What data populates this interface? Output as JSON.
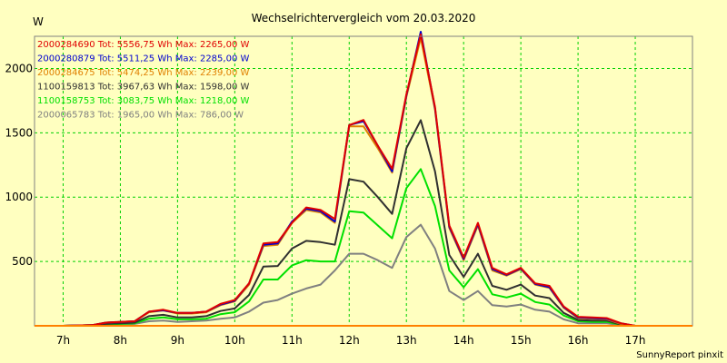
{
  "chart_data": {
    "type": "line",
    "title": "Wechselrichtervergleich vom 20.03.2020",
    "ylabel": "W",
    "xlabel": "",
    "footer": "SunnyReport pinxit",
    "grid": true,
    "xlim": [
      6.5,
      18
    ],
    "ylim": [
      0,
      2250
    ],
    "x_ticks": [
      7,
      8,
      9,
      10,
      11,
      12,
      13,
      14,
      15,
      16,
      17
    ],
    "x_tick_labels": [
      "7h",
      "8h",
      "9h",
      "10h",
      "11h",
      "12h",
      "13h",
      "14h",
      "15h",
      "16h",
      "17h"
    ],
    "y_ticks": [
      500,
      1000,
      1500,
      2000
    ],
    "y_tick_labels": [
      "500",
      "1000",
      "1500",
      "2000"
    ],
    "x": [
      6.5,
      7.0,
      7.5,
      7.75,
      8.0,
      8.25,
      8.5,
      8.75,
      9.0,
      9.25,
      9.5,
      9.75,
      10.0,
      10.25,
      10.5,
      10.75,
      11.0,
      11.25,
      11.5,
      11.75,
      12.0,
      12.25,
      12.5,
      12.75,
      13.0,
      13.25,
      13.5,
      13.75,
      14.0,
      14.25,
      14.5,
      14.75,
      15.0,
      15.25,
      15.5,
      15.75,
      16.0,
      16.25,
      16.5,
      16.75,
      17.0,
      17.25,
      17.5,
      18.0
    ],
    "series": [
      {
        "name": "2000284690",
        "legend": "2000284690 Tot: 5556,75 Wh Max: 2265,00 W",
        "color": "#e00000",
        "values": [
          0,
          0,
          5,
          25,
          30,
          35,
          110,
          125,
          100,
          100,
          110,
          170,
          200,
          330,
          640,
          650,
          800,
          920,
          900,
          830,
          1560,
          1600,
          1400,
          1220,
          1800,
          2265,
          1700,
          780,
          530,
          800,
          450,
          400,
          450,
          330,
          310,
          150,
          70,
          65,
          60,
          20,
          0,
          0,
          0,
          0
        ]
      },
      {
        "name": "2000280879",
        "legend": "2000280879 Tot: 5511,25 Wh Max: 2285,00 W",
        "color": "#0000d0",
        "values": [
          0,
          0,
          5,
          25,
          30,
          35,
          110,
          120,
          100,
          100,
          110,
          165,
          195,
          330,
          630,
          640,
          810,
          910,
          890,
          810,
          1560,
          1590,
          1400,
          1200,
          1790,
          2285,
          1690,
          770,
          520,
          790,
          440,
          395,
          445,
          325,
          300,
          145,
          65,
          60,
          55,
          20,
          0,
          0,
          0,
          0
        ]
      },
      {
        "name": "2000284675",
        "legend": "2000284675 Tot: 5474,25 Wh Max: 2239,00 W",
        "color": "#e08000",
        "values": [
          0,
          0,
          5,
          25,
          30,
          35,
          105,
          120,
          95,
          95,
          105,
          160,
          190,
          320,
          620,
          630,
          800,
          900,
          880,
          800,
          1550,
          1550,
          1380,
          1190,
          1780,
          2239,
          1680,
          760,
          510,
          780,
          430,
          390,
          440,
          320,
          295,
          140,
          60,
          55,
          50,
          15,
          0,
          0,
          0,
          0
        ]
      },
      {
        "name": "1100159813",
        "legend": "1100159813 Tot: 3967,63 Wh Max: 1598,00 W",
        "color": "#303030",
        "values": [
          0,
          0,
          5,
          15,
          20,
          25,
          75,
          85,
          65,
          65,
          75,
          115,
          135,
          240,
          460,
          465,
          600,
          660,
          650,
          630,
          1140,
          1120,
          1000,
          870,
          1380,
          1598,
          1200,
          550,
          380,
          560,
          310,
          280,
          320,
          235,
          215,
          100,
          45,
          40,
          40,
          10,
          0,
          0,
          0,
          0
        ]
      },
      {
        "name": "1100158753",
        "legend": "1100158753 Tot: 3083,75 Wh Max: 1218,00 W",
        "color": "#00e000",
        "values": [
          0,
          0,
          5,
          10,
          15,
          20,
          55,
          65,
          50,
          50,
          55,
          90,
          105,
          190,
          360,
          360,
          470,
          510,
          500,
          500,
          890,
          880,
          780,
          680,
          1070,
          1218,
          930,
          430,
          300,
          440,
          245,
          220,
          250,
          185,
          165,
          80,
          35,
          30,
          30,
          8,
          0,
          0,
          0,
          0
        ]
      },
      {
        "name": "2000065783",
        "legend": "2000065783 Tot: 1965,00 Wh Max: 786,00 W",
        "color": "#808080",
        "values": [
          0,
          0,
          3,
          8,
          10,
          15,
          35,
          40,
          30,
          35,
          40,
          55,
          65,
          110,
          180,
          200,
          250,
          290,
          320,
          430,
          560,
          560,
          510,
          450,
          690,
          786,
          600,
          270,
          200,
          270,
          160,
          150,
          165,
          125,
          110,
          50,
          20,
          20,
          20,
          5,
          0,
          0,
          0,
          0
        ]
      }
    ]
  }
}
